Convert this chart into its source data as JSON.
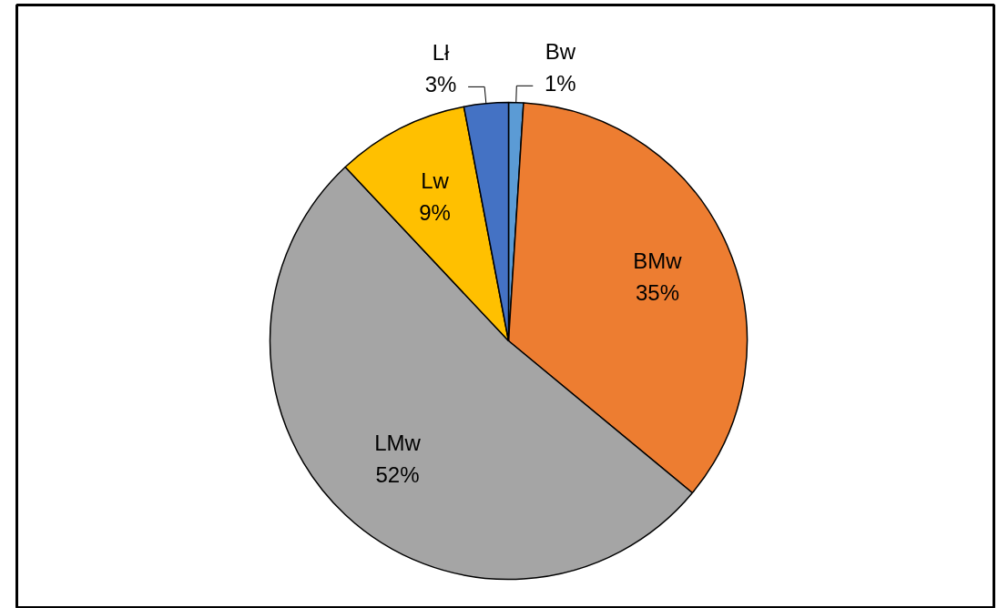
{
  "chart_data": {
    "type": "pie",
    "categories": [
      "Bw",
      "BMw",
      "LMw",
      "Lw",
      "Lł"
    ],
    "values": [
      1,
      35,
      52,
      9,
      3
    ],
    "colors": [
      "#5b9bd5",
      "#ed7d31",
      "#a5a5a5",
      "#ffc000",
      "#4472c4"
    ],
    "value_labels": [
      "1%",
      "35%",
      "52%",
      "9%",
      "3%"
    ]
  }
}
